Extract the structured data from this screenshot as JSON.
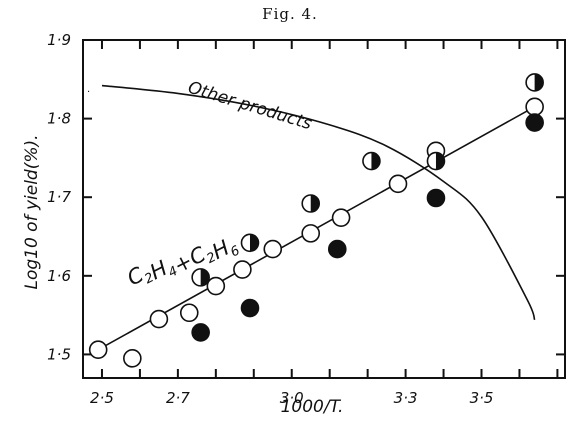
{
  "figure_label": "Fig. 4.",
  "chart_data": {
    "type": "scatter",
    "xlabel": "1000/T.",
    "ylabel": "Log10 of yield(%).",
    "xlim": [
      2.45,
      3.72
    ],
    "ylim": [
      1.47,
      1.9
    ],
    "x_ticks": [
      2.5,
      2.6,
      2.7,
      2.8,
      2.9,
      3.0,
      3.1,
      3.2,
      3.3,
      3.4,
      3.5,
      3.6,
      3.7
    ],
    "x_tick_labels": [
      {
        "value": 2.5,
        "label": "2·5"
      },
      {
        "value": 2.7,
        "label": "2·7"
      },
      {
        "value": 3.0,
        "label": "3·0"
      },
      {
        "value": 3.3,
        "label": "3·3"
      },
      {
        "value": 3.5,
        "label": "3·5"
      }
    ],
    "y_ticks": [
      1.5,
      1.6,
      1.7,
      1.8,
      1.9
    ],
    "y_tick_labels": [
      {
        "value": 1.5,
        "label": "1·5"
      },
      {
        "value": 1.6,
        "label": "1·6"
      },
      {
        "value": 1.7,
        "label": "1·7"
      },
      {
        "value": 1.8,
        "label": "1·8"
      },
      {
        "value": 1.9,
        "label": "1·9"
      }
    ],
    "grid": false,
    "series": [
      {
        "marker": "open",
        "points": [
          {
            "x": 2.49,
            "y": 1.506
          },
          {
            "x": 2.58,
            "y": 1.495
          },
          {
            "x": 2.65,
            "y": 1.545
          },
          {
            "x": 2.73,
            "y": 1.553
          },
          {
            "x": 2.8,
            "y": 1.587
          },
          {
            "x": 2.87,
            "y": 1.608
          },
          {
            "x": 2.95,
            "y": 1.634
          },
          {
            "x": 3.05,
            "y": 1.654
          },
          {
            "x": 3.13,
            "y": 1.674
          },
          {
            "x": 3.28,
            "y": 1.717
          },
          {
            "x": 3.38,
            "y": 1.759
          },
          {
            "x": 3.64,
            "y": 1.815
          }
        ]
      },
      {
        "marker": "half",
        "points": [
          {
            "x": 2.76,
            "y": 1.598
          },
          {
            "x": 2.89,
            "y": 1.642
          },
          {
            "x": 3.05,
            "y": 1.692
          },
          {
            "x": 3.21,
            "y": 1.746
          },
          {
            "x": 3.38,
            "y": 1.746
          },
          {
            "x": 3.64,
            "y": 1.846
          }
        ]
      },
      {
        "marker": "filled",
        "points": [
          {
            "x": 2.76,
            "y": 1.528
          },
          {
            "x": 2.89,
            "y": 1.559
          },
          {
            "x": 3.12,
            "y": 1.634
          },
          {
            "x": 3.38,
            "y": 1.699
          },
          {
            "x": 3.64,
            "y": 1.795
          }
        ]
      }
    ],
    "lines": [
      {
        "label": "C2H4 + C2H6",
        "kind": "straight",
        "points": [
          {
            "x": 2.49,
            "y": 1.506
          },
          {
            "x": 3.64,
            "y": 1.815
          }
        ]
      },
      {
        "label": "Other products",
        "kind": "curve",
        "points": [
          {
            "x": 2.5,
            "y": 1.842
          },
          {
            "x": 2.7,
            "y": 1.832
          },
          {
            "x": 2.9,
            "y": 1.816
          },
          {
            "x": 3.1,
            "y": 1.792
          },
          {
            "x": 3.25,
            "y": 1.765
          },
          {
            "x": 3.4,
            "y": 1.72
          },
          {
            "x": 3.5,
            "y": 1.675
          },
          {
            "x": 3.62,
            "y": 1.57
          },
          {
            "x": 3.64,
            "y": 1.544
          }
        ]
      }
    ],
    "annotations": [
      {
        "text": "Other products"
      },
      {
        "formula": "C2H4+C2H6"
      }
    ]
  }
}
